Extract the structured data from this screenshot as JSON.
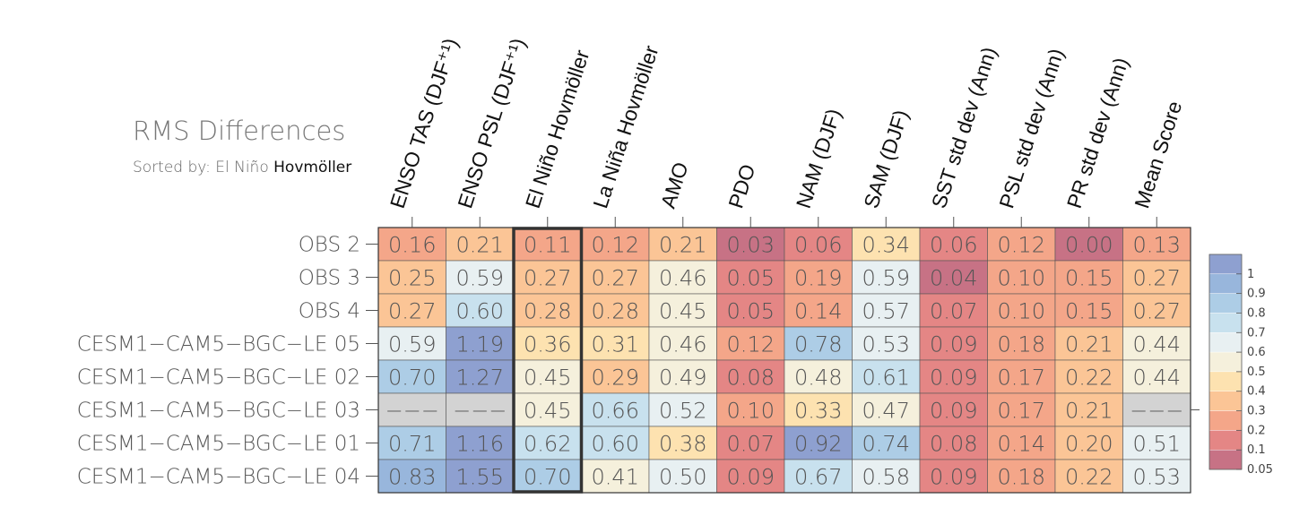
{
  "chart_data": {
    "type": "heatmap",
    "title": "RMS Differences",
    "subtitle_prefix": "Sorted by: El Niño ",
    "subtitle_sorted": "Hovmöller",
    "columns": [
      "ENSO TAS (DJF⁺¹)",
      "ENSO PSL (DJF⁺¹)",
      "El Niño Hovmöller",
      "La Niña Hovmöller",
      "AMO",
      "PDO",
      "NAM (DJF)",
      "SAM (DJF)",
      "SST std dev (Ann)",
      "PSL std dev (Ann)",
      "PR std dev (Ann)",
      "Mean Score"
    ],
    "highlighted_column": 2,
    "rows": [
      {
        "label": "OBS 2",
        "values": [
          "0.16",
          "0.21",
          "0.11",
          "0.12",
          "0.21",
          "0.03",
          "0.06",
          "0.34",
          "0.06",
          "0.12",
          "0.00",
          "0.13"
        ]
      },
      {
        "label": "OBS 3",
        "values": [
          "0.25",
          "0.59",
          "0.27",
          "0.27",
          "0.46",
          "0.05",
          "0.19",
          "0.59",
          "0.04",
          "0.10",
          "0.15",
          "0.27"
        ]
      },
      {
        "label": "OBS 4",
        "values": [
          "0.27",
          "0.60",
          "0.28",
          "0.28",
          "0.45",
          "0.05",
          "0.14",
          "0.57",
          "0.07",
          "0.10",
          "0.15",
          "0.27"
        ]
      },
      {
        "label": "CESM1−CAM5−BGC−LE 05",
        "values": [
          "0.59",
          "1.19",
          "0.36",
          "0.31",
          "0.46",
          "0.12",
          "0.78",
          "0.53",
          "0.09",
          "0.18",
          "0.21",
          "0.44"
        ]
      },
      {
        "label": "CESM1−CAM5−BGC−LE 02",
        "values": [
          "0.70",
          "1.27",
          "0.45",
          "0.29",
          "0.49",
          "0.08",
          "0.48",
          "0.61",
          "0.09",
          "0.17",
          "0.22",
          "0.44"
        ]
      },
      {
        "label": "CESM1−CAM5−BGC−LE 03",
        "values": [
          null,
          null,
          "0.45",
          "0.66",
          "0.52",
          "0.10",
          "0.33",
          "0.47",
          "0.09",
          "0.17",
          "0.21",
          null
        ]
      },
      {
        "label": "CESM1−CAM5−BGC−LE 01",
        "values": [
          "0.71",
          "1.16",
          "0.62",
          "0.60",
          "0.38",
          "0.07",
          "0.92",
          "0.74",
          "0.08",
          "0.14",
          "0.20",
          "0.51"
        ]
      },
      {
        "label": "CESM1−CAM5−BGC−LE 04",
        "values": [
          "0.83",
          "1.55",
          "0.70",
          "0.41",
          "0.50",
          "0.09",
          "0.67",
          "0.58",
          "0.09",
          "0.18",
          "0.22",
          "0.53"
        ]
      }
    ],
    "missing_marker": "−−−",
    "missing_color": "#d3d3d3",
    "colorbar": {
      "labels": [
        "1",
        "0.9",
        "0.8",
        "0.7",
        "0.6",
        "0.5",
        "0.4",
        "0.3",
        "0.2",
        "0.1",
        "0.05"
      ],
      "thresholds": [
        0.05,
        0.1,
        0.2,
        0.3,
        0.4,
        0.5,
        0.6,
        0.7,
        0.8,
        0.9,
        1.0
      ],
      "colors": [
        "#c77285",
        "#e48685",
        "#f4a689",
        "#fbc596",
        "#fde2b0",
        "#f5f0dc",
        "#e8f0f2",
        "#c8e1ee",
        "#adcde6",
        "#98b6dc",
        "#8ea0d0"
      ]
    }
  }
}
